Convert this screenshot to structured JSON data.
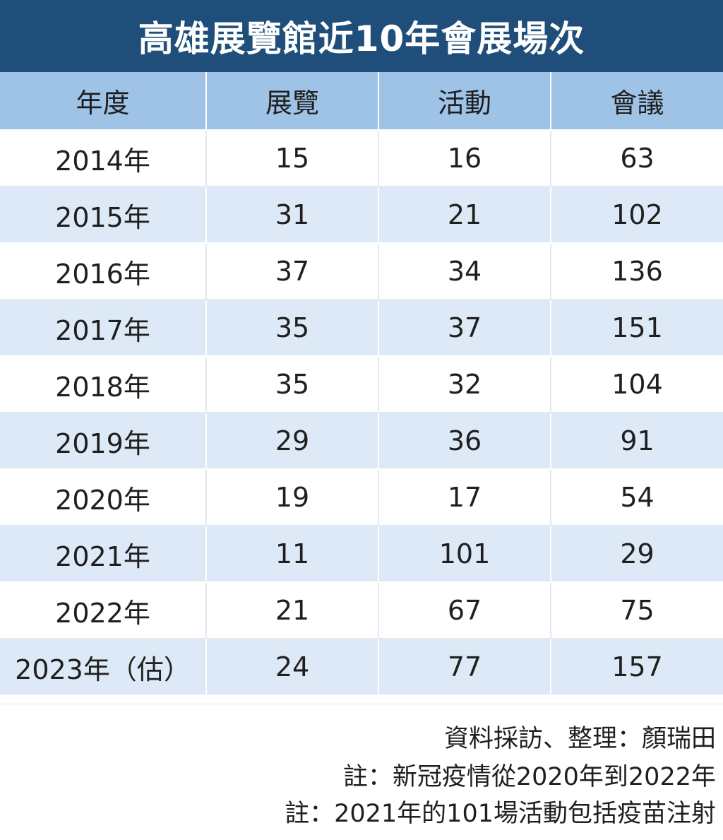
{
  "title": "高雄展覽館近10年會展場次",
  "chart_data": {
    "type": "table",
    "title": "高雄展覽館近10年會展場次",
    "columns": [
      "年度",
      "展覽",
      "活動",
      "會議"
    ],
    "rows": [
      [
        "2014年",
        "15",
        "16",
        "63"
      ],
      [
        "2015年",
        "31",
        "21",
        "102"
      ],
      [
        "2016年",
        "37",
        "34",
        "136"
      ],
      [
        "2017年",
        "35",
        "37",
        "151"
      ],
      [
        "2018年",
        "35",
        "32",
        "104"
      ],
      [
        "2019年",
        "29",
        "36",
        "91"
      ],
      [
        "2020年",
        "19",
        "17",
        "54"
      ],
      [
        "2021年",
        "11",
        "101",
        "29"
      ],
      [
        "2022年",
        "21",
        "67",
        "75"
      ],
      [
        "2023年（估）",
        "24",
        "77",
        "157"
      ]
    ]
  },
  "notes": [
    "資料採訪、整理：顏瑞田",
    "註：新冠疫情從2020年到2022年",
    "註：2021年的101場活動包括疫苗注射"
  ],
  "colors": {
    "title_bg": "#1f4e7a",
    "header_bg": "#9fc3e7",
    "stripe_bg": "#dde9f6"
  }
}
